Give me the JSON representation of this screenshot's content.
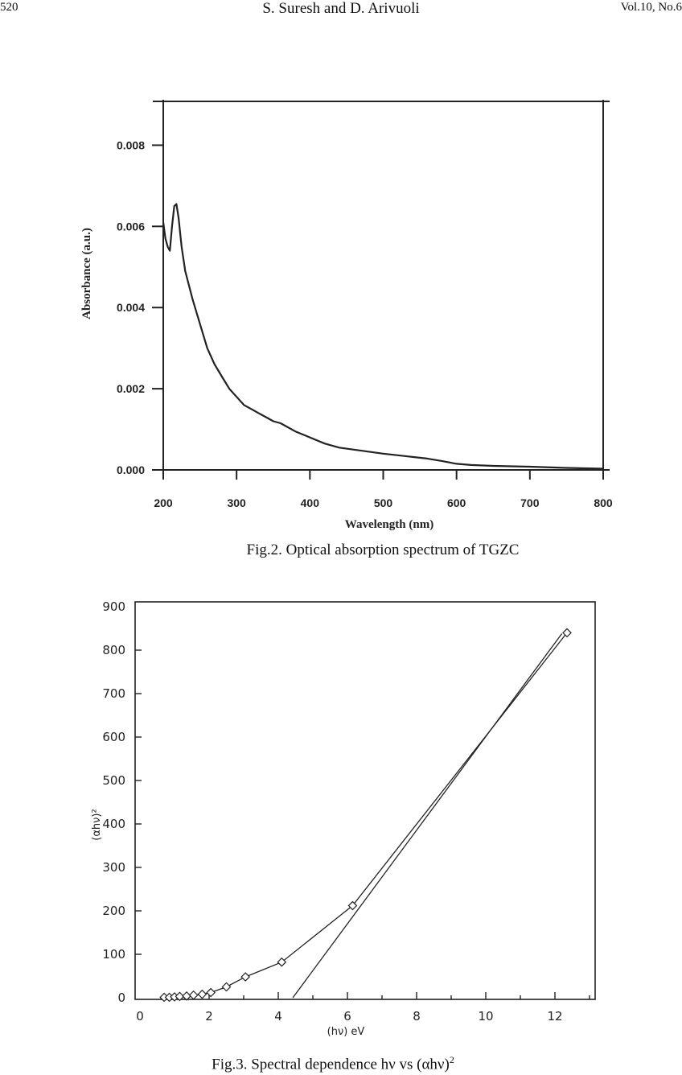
{
  "header": {
    "page_number": "520",
    "authors": "S. Suresh and D. Arivuoli",
    "volume": "Vol.10, No.6"
  },
  "figures": [
    {
      "caption": "Fig.2. Optical absorption spectrum of TGZC"
    },
    {
      "caption_main": "Fig.3. Spectral dependence hν vs (αhν)",
      "caption_sup": "2"
    }
  ],
  "chart_data": [
    {
      "type": "line",
      "title": "",
      "xlabel": "Wavelength (nm)",
      "ylabel": "Absorbance (a.u.)",
      "xlim": [
        200,
        800
      ],
      "ylim": [
        0,
        0.009
      ],
      "x_ticks": [
        "200",
        "300",
        "400",
        "500",
        "600",
        "700",
        "800"
      ],
      "y_ticks": [
        "0.000",
        "0.002",
        "0.004",
        "0.006",
        "0.008"
      ],
      "grid": false,
      "series": [
        {
          "x": [
            200,
            203,
            206,
            209,
            212,
            215,
            218,
            221,
            225,
            230,
            240,
            250,
            260,
            270,
            280,
            290,
            300,
            310,
            320,
            330,
            340,
            350,
            360,
            380,
            400,
            420,
            440,
            460,
            480,
            500,
            520,
            540,
            560,
            580,
            600,
            620,
            650,
            700,
            750,
            800
          ],
          "y": [
            0.0061,
            0.0057,
            0.0055,
            0.0054,
            0.006,
            0.0065,
            0.00655,
            0.0062,
            0.0055,
            0.0049,
            0.0042,
            0.0036,
            0.003,
            0.0026,
            0.0023,
            0.002,
            0.0018,
            0.0016,
            0.0015,
            0.0014,
            0.0013,
            0.0012,
            0.00115,
            0.00095,
            0.0008,
            0.00065,
            0.00055,
            0.0005,
            0.00045,
            0.0004,
            0.00036,
            0.00032,
            0.00028,
            0.00022,
            0.00015,
            0.00012,
            0.0001,
            8e-05,
            5e-05,
            3e-05
          ]
        }
      ]
    },
    {
      "type": "scatter",
      "title": "",
      "xlabel": "(hν) eV",
      "ylabel": "(αhν)²",
      "xlim": [
        0,
        13
      ],
      "ylim": [
        0,
        900
      ],
      "x_ticks": [
        "0",
        "2",
        "4",
        "6",
        "8",
        "10",
        "12"
      ],
      "y_ticks": [
        "0",
        "100",
        "200",
        "300",
        "400",
        "500",
        "600",
        "700",
        "800",
        "900"
      ],
      "grid": false,
      "series": [
        {
          "x": [
            0.7,
            0.85,
            1.0,
            1.15,
            1.35,
            1.55,
            1.8,
            2.05,
            2.5,
            3.05,
            4.1,
            6.15,
            12.35
          ],
          "y": [
            1,
            1,
            2,
            3,
            4,
            6,
            8,
            12,
            25,
            48,
            82,
            212,
            840
          ]
        }
      ],
      "fit_line": {
        "x": [
          4.42,
          12.2
        ],
        "y": [
          0,
          838
        ]
      }
    }
  ]
}
